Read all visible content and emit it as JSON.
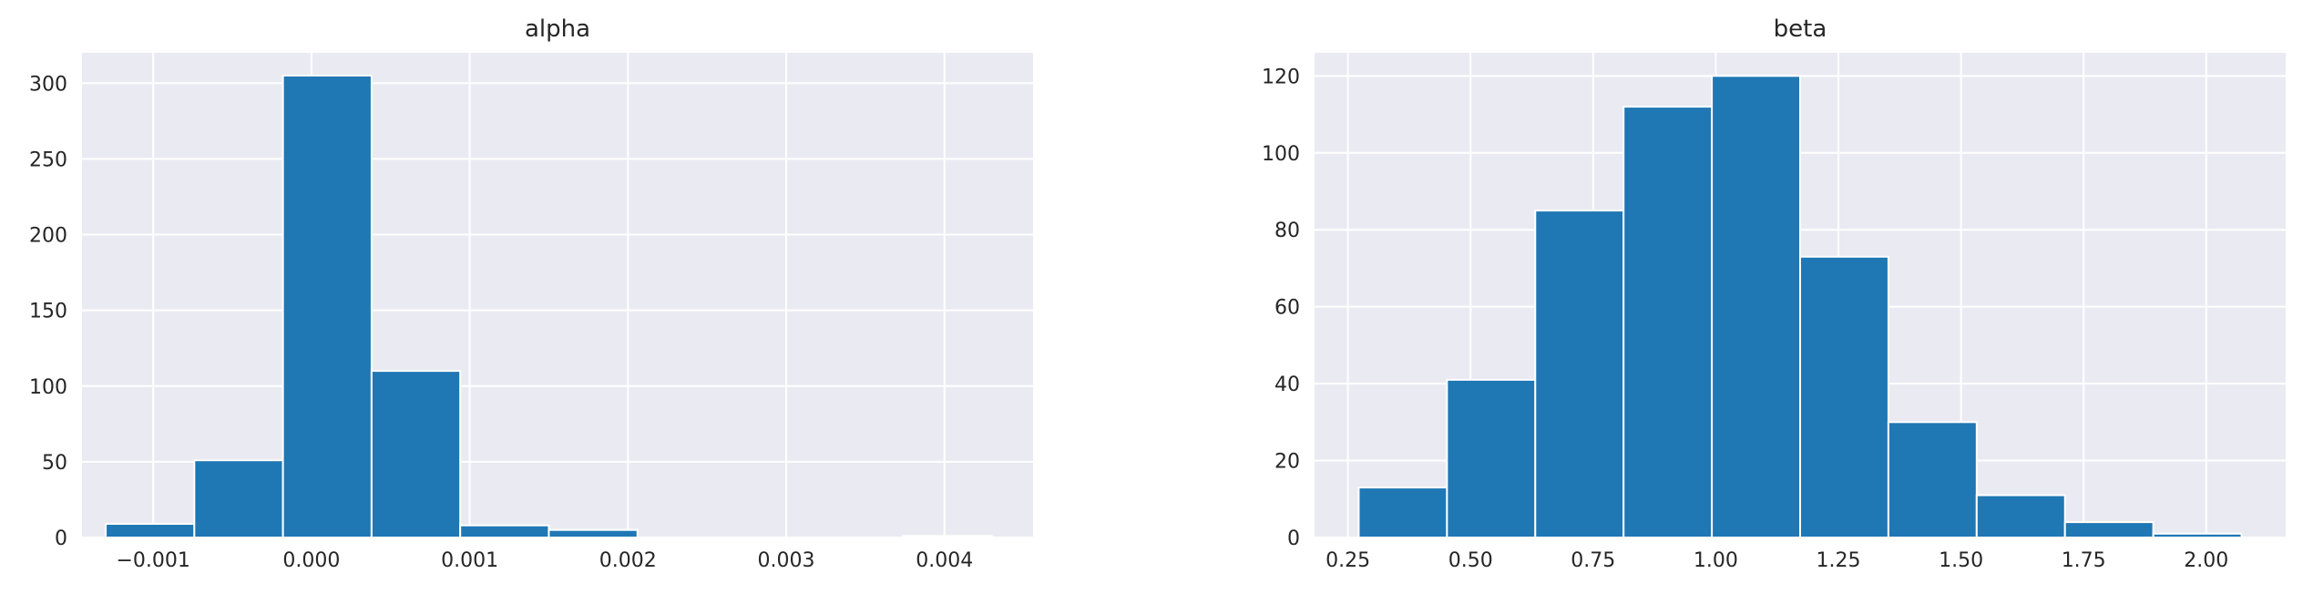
{
  "chart_data": [
    {
      "type": "bar",
      "title": "alpha",
      "xlabel": "",
      "ylabel": "",
      "bin_edges": [
        -0.0013,
        -0.00074,
        -0.00018,
        0.00038,
        0.00094,
        0.0015,
        0.00206,
        0.00262,
        0.00318,
        0.00374,
        0.0043
      ],
      "values": [
        9,
        51,
        305,
        110,
        8,
        5,
        0,
        0,
        0,
        1
      ],
      "xlim": [
        -0.00145,
        0.00456
      ],
      "ylim": [
        0,
        320
      ],
      "xticks": [
        -0.001,
        0.0,
        0.001,
        0.002,
        0.003,
        0.004
      ],
      "xtick_labels": [
        "−0.001",
        "0.000",
        "0.001",
        "0.002",
        "0.003",
        "0.004"
      ],
      "yticks": [
        0,
        50,
        100,
        150,
        200,
        250,
        300
      ],
      "ytick_labels": [
        "0",
        "50",
        "100",
        "150",
        "200",
        "250",
        "300"
      ],
      "grid": true,
      "bar_color": "#1f77b4",
      "background_color": "#eaeaf2"
    },
    {
      "type": "bar",
      "title": "beta",
      "xlabel": "",
      "ylabel": "",
      "bin_edges": [
        0.272,
        0.452,
        0.632,
        0.812,
        0.992,
        1.172,
        1.352,
        1.532,
        1.712,
        1.892,
        2.072
      ],
      "values": [
        13,
        41,
        85,
        112,
        120,
        73,
        30,
        11,
        4,
        1
      ],
      "xlim": [
        0.182,
        2.162
      ],
      "ylim": [
        0,
        126
      ],
      "xticks": [
        0.25,
        0.5,
        0.75,
        1.0,
        1.25,
        1.5,
        1.75,
        2.0
      ],
      "xtick_labels": [
        "0.25",
        "0.50",
        "0.75",
        "1.00",
        "1.25",
        "1.50",
        "1.75",
        "2.00"
      ],
      "yticks": [
        0,
        20,
        40,
        60,
        80,
        100,
        120
      ],
      "ytick_labels": [
        "0",
        "20",
        "40",
        "60",
        "80",
        "100",
        "120"
      ],
      "grid": true,
      "bar_color": "#1f77b4",
      "background_color": "#eaeaf2"
    }
  ]
}
